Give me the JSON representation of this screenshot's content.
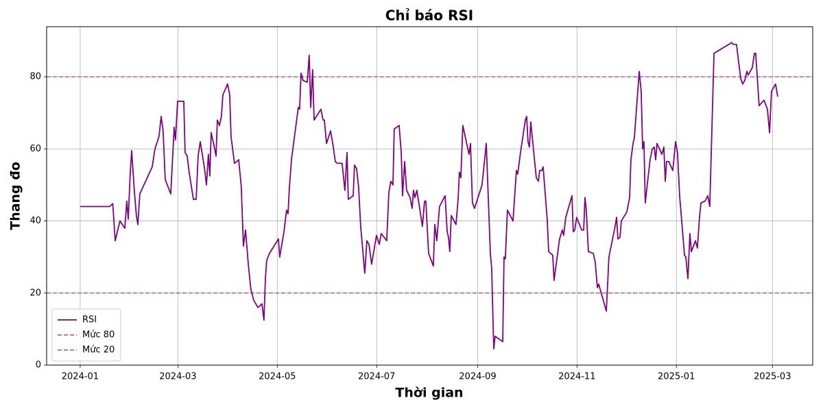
{
  "chart_data": {
    "type": "line",
    "title": "Chỉ báo RSI",
    "x_label": "Thời gian",
    "y_label": "Thang đo",
    "x": [
      0,
      18,
      20,
      21.5,
      24.4,
      27.4,
      28.6,
      29.5,
      30.7,
      31.6,
      33.3,
      34.5,
      35.4,
      36.6,
      44.2,
      45.9,
      48.4,
      49.7,
      50.9,
      52.2,
      55.6,
      57.7,
      58.5,
      59.8,
      63.6,
      64.4,
      65.7,
      66.9,
      69.5,
      71.2,
      72.4,
      73.7,
      76.2,
      77.5,
      78.7,
      79.6,
      80.4,
      82.1,
      83.4,
      84.2,
      85.5,
      86.7,
      87.6,
      90.5,
      91.8,
      92.6,
      94.7,
      97.3,
      98.9,
      100.2,
      101.5,
      103.2,
      104.8,
      106.5,
      109.1,
      111.6,
      112.8,
      113.7,
      114.5,
      116.2,
      121.7,
      122.5,
      125.1,
      126.7,
      127.6,
      128.4,
      129.7,
      133.9,
      134.7,
      135.6,
      136.8,
      139.4,
      140.6,
      141.5,
      142.7,
      143.6,
      145.7,
      147.8,
      149.1,
      149.9,
      151.2,
      153.7,
      155.4,
      156.6,
      157.9,
      160.8,
      162.5,
      163.8,
      164.6,
      167.6,
      168.4,
      169.7,
      170.9,
      172.2,
      174.7,
      176,
      177.3,
      178.9,
      181.9,
      183.6,
      184.8,
      188.2,
      189.5,
      190.7,
      192,
      192.8,
      195.8,
      197.1,
      197.9,
      199.2,
      200.4,
      202.5,
      203.8,
      204.6,
      205.5,
      206.7,
      210.1,
      211.4,
      212.2,
      213.9,
      216.8,
      217.7,
      218.9,
      220.6,
      224,
      225.3,
      226.1,
      226.9,
      227.8,
      230.7,
      232,
      232.8,
      233.7,
      234.9,
      238.7,
      239.6,
      240.8,
      242.1,
      246.7,
      249.3,
      251.8,
      252.6,
      253.9,
      254.7,
      259.4,
      260.2,
      261,
      262.3,
      265.7,
      267.8,
      268.6,
      270.3,
      273.3,
      274.1,
      274.9,
      275.8,
      276.6,
      280,
      281.3,
      282.1,
      283.4,
      284.2,
      286.7,
      287.6,
      290.1,
      290.9,
      294.3,
      296,
      296.8,
      298.1,
      301.9,
      302.7,
      303.6,
      304.8,
      307.8,
      309.1,
      309.9,
      310.7,
      312,
      315,
      316.2,
      317.5,
      318.3,
      323,
      324.6,
      328.4,
      329.3,
      330.1,
      331.4,
      332.2,
      335.6,
      337.3,
      338.1,
      339.4,
      340.2,
      343.2,
      344.4,
      345.3,
      346.1,
      346.9,
      348.6,
      349.9,
      351.2,
      352.4,
      353.3,
      354.1,
      357.1,
      358.3,
      359.2,
      360,
      361.3,
      363.8,
      365.5,
      366.7,
      368,
      371,
      371.8,
      373.1,
      374.3,
      375.2,
      377.7,
      378.9,
      380.2,
      381.1,
      383.6,
      385.3,
      386.5,
      389.1,
      400,
      400.8,
      402.9,
      405.5,
      406.7,
      408,
      409.3,
      410.1,
      412.6,
      413.9,
      414.7,
      416.8,
      419.8,
      421.9,
      423.2,
      424.4,
      426.9,
      428.2
    ],
    "series": [
      {
        "name": "RSI",
        "color": "#800080",
        "values": [
          44,
          44,
          44.8,
          34.5,
          40,
          38,
          45.5,
          40.5,
          53,
          59.5,
          48,
          41.5,
          39,
          47.5,
          55,
          60,
          63.5,
          69,
          65,
          51.5,
          47.5,
          66,
          62.5,
          73.2,
          73.2,
          59,
          58,
          53.5,
          46,
          46,
          58,
          62,
          55,
          50,
          58.5,
          52.5,
          64.5,
          61,
          58,
          68,
          66.5,
          69,
          75,
          78,
          75,
          63.5,
          56,
          57,
          49.5,
          33,
          37.5,
          28,
          21,
          18,
          16,
          17,
          12.5,
          24,
          29,
          31,
          35,
          30,
          37,
          43,
          42,
          49,
          57,
          71.5,
          71,
          81,
          79,
          78.5,
          86,
          71.5,
          82,
          68,
          69.5,
          71,
          68,
          68,
          61.5,
          65,
          60.5,
          56.5,
          56,
          56,
          48.5,
          59,
          46,
          47,
          55.5,
          54.5,
          49.5,
          38.5,
          25.5,
          34.5,
          33.5,
          28,
          36,
          33.5,
          36.5,
          34.5,
          48,
          51,
          50,
          65.5,
          66.5,
          59,
          47,
          56.5,
          48.5,
          46.5,
          43.5,
          48.5,
          46.5,
          48.5,
          38.5,
          45.5,
          45.5,
          31,
          27.5,
          39,
          34.5,
          44,
          47,
          37,
          35.5,
          31.5,
          41.5,
          39,
          46,
          53.5,
          52,
          66.5,
          58.5,
          61.5,
          45,
          43.5,
          50,
          61.5,
          31,
          27,
          4.5,
          8,
          6.5,
          30,
          29.5,
          43,
          40,
          54,
          53,
          59,
          68,
          69,
          62,
          60.5,
          67.5,
          52,
          51,
          54,
          54,
          55,
          40.5,
          31.5,
          30.5,
          23.5,
          35,
          37.5,
          36,
          41,
          47,
          37,
          37.5,
          41,
          37.5,
          37.5,
          46.5,
          43,
          31.5,
          31,
          28.5,
          21.5,
          22.5,
          15,
          30,
          38.5,
          41,
          35,
          35.5,
          40,
          42.5,
          46.5,
          57,
          61.5,
          63,
          81.5,
          76,
          60,
          62,
          45,
          52,
          57,
          60,
          60.5,
          57,
          61.5,
          58.5,
          60.5,
          51,
          56.5,
          56.5,
          54,
          62,
          59,
          47,
          30.5,
          30,
          24,
          36.5,
          31.5,
          34.5,
          32.5,
          41,
          45,
          45.5,
          47,
          44,
          86.5,
          89.5,
          89,
          89,
          79.5,
          78,
          79,
          81.5,
          80.5,
          82.5,
          86.5,
          86.5,
          72,
          73.5,
          71,
          64.5,
          76,
          78,
          74.5
        ]
      }
    ],
    "reference_lines": [
      {
        "name": "Mức 80",
        "value": 80,
        "color": "#b5629f"
      },
      {
        "name": "Mức 20",
        "value": 20,
        "color": "#b5629f"
      }
    ],
    "xlim": [
      -20.6,
      449.7
    ],
    "xticks": [
      {
        "value": 0,
        "label": "2024-01"
      },
      {
        "value": 60,
        "label": "2024-03"
      },
      {
        "value": 121,
        "label": "2024-05"
      },
      {
        "value": 182,
        "label": "2024-07"
      },
      {
        "value": 244,
        "label": "2024-09"
      },
      {
        "value": 305,
        "label": "2024-11"
      },
      {
        "value": 366,
        "label": "2025-01"
      },
      {
        "value": 425,
        "label": "2025-03"
      }
    ],
    "ylim": [
      0,
      93.9
    ],
    "yticks": [
      0,
      20,
      40,
      60,
      80
    ],
    "grid": true,
    "legend": "lower left"
  }
}
